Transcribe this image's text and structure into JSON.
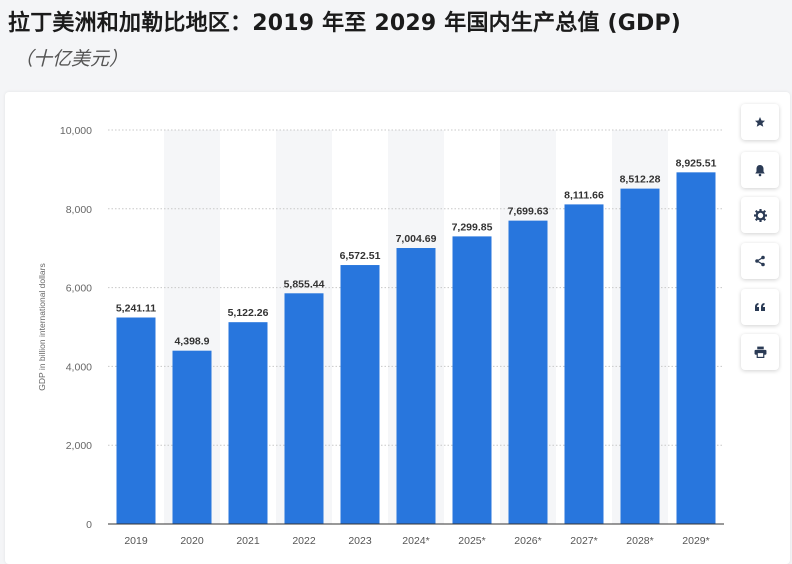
{
  "title": "拉丁美洲和加勒比地区：2019 年至 2029 年国内生产总值 (GDP)",
  "subtitle": "（十亿美元）",
  "toolbar": {
    "icons": [
      "star-icon",
      "bell-icon",
      "gear-icon",
      "share-icon",
      "quote-icon",
      "print-icon"
    ]
  },
  "colors": {
    "bar": "#2876dd",
    "grid": "#c8c8c8",
    "band": "#f5f6f8",
    "icon": "#2b3b55"
  },
  "chart_data": {
    "type": "bar",
    "categories": [
      "2019",
      "2020",
      "2021",
      "2022",
      "2023",
      "2024*",
      "2025*",
      "2026*",
      "2027*",
      "2028*",
      "2029*"
    ],
    "values": [
      5241.11,
      4398.9,
      5122.26,
      5855.44,
      6572.51,
      7004.69,
      7299.85,
      7699.63,
      8111.66,
      8512.28,
      8925.51
    ],
    "value_labels": [
      "5,241.11",
      "4,398.9",
      "5,122.26",
      "5,855.44",
      "6,572.51",
      "7,004.69",
      "7,299.85",
      "7,699.63",
      "8,111.66",
      "8,512.28",
      "8,925.51"
    ],
    "ylabel": "GDP in billion international dollars",
    "xlabel": "",
    "ylim": [
      0,
      10000
    ],
    "yticks": [
      0,
      2000,
      4000,
      6000,
      8000,
      10000
    ],
    "ytick_labels": [
      "0",
      "2,000",
      "4,000",
      "6,000",
      "8,000",
      "10,000"
    ],
    "grid": true
  }
}
